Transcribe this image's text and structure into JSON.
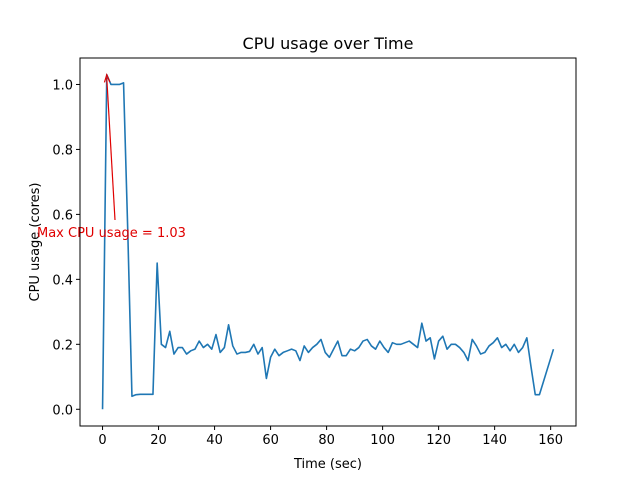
{
  "chart_data": {
    "type": "line",
    "title": "CPU usage over Time",
    "xlabel": "Time (sec)",
    "ylabel": "CPU usage (cores)",
    "annotation": "Max CPU usage = 1.03",
    "annotation_color": "#e00000",
    "x": [
      0,
      1.5,
      3,
      4.5,
      6,
      7.5,
      9,
      10.5,
      12,
      13.5,
      15,
      16.5,
      18,
      19.5,
      21,
      22.5,
      24,
      25.5,
      27,
      28.5,
      30,
      31.5,
      33,
      34.5,
      36,
      37.5,
      39,
      40.5,
      42,
      43.5,
      45,
      46.5,
      48,
      49.5,
      51,
      52.5,
      54,
      55.5,
      57,
      58.5,
      60,
      61.5,
      63,
      64.5,
      66,
      67.5,
      69,
      70.5,
      72,
      73.5,
      75,
      76.5,
      78,
      79.5,
      81,
      82.5,
      84,
      85.5,
      87,
      88.5,
      90,
      91.5,
      93,
      94.5,
      96,
      97.5,
      99,
      100.5,
      102,
      103.5,
      105,
      106.5,
      108,
      109.5,
      111,
      112.5,
      114,
      115.5,
      117,
      118.5,
      120,
      121.5,
      123,
      124.5,
      126,
      127.5,
      129,
      130.5,
      132,
      133.5,
      135,
      136.5,
      138,
      139.5,
      141,
      142.5,
      144,
      145.5,
      147,
      148.5,
      150,
      151.5,
      153,
      154.5,
      156,
      161
    ],
    "series": [
      {
        "name": "CPU usage",
        "color": "#1f77b4",
        "values": [
          0,
          1.03,
          1.0,
          1.0,
          1.0,
          1.005,
          0.55,
          0.04,
          0.045,
          0.046,
          0.046,
          0.046,
          0.046,
          0.45,
          0.2,
          0.19,
          0.24,
          0.17,
          0.19,
          0.19,
          0.17,
          0.18,
          0.185,
          0.21,
          0.19,
          0.2,
          0.185,
          0.23,
          0.175,
          0.19,
          0.26,
          0.195,
          0.17,
          0.175,
          0.175,
          0.178,
          0.2,
          0.17,
          0.19,
          0.095,
          0.16,
          0.185,
          0.165,
          0.175,
          0.18,
          0.185,
          0.18,
          0.15,
          0.195,
          0.175,
          0.19,
          0.2,
          0.215,
          0.175,
          0.16,
          0.185,
          0.21,
          0.165,
          0.165,
          0.185,
          0.18,
          0.19,
          0.21,
          0.215,
          0.195,
          0.185,
          0.21,
          0.19,
          0.175,
          0.205,
          0.2,
          0.2,
          0.205,
          0.21,
          0.2,
          0.19,
          0.265,
          0.21,
          0.22,
          0.155,
          0.21,
          0.225,
          0.185,
          0.2,
          0.2,
          0.19,
          0.175,
          0.15,
          0.215,
          0.195,
          0.17,
          0.175,
          0.195,
          0.205,
          0.22,
          0.19,
          0.2,
          0.18,
          0.2,
          0.175,
          0.19,
          0.22,
          0.13,
          0.045,
          0.045,
          0.185
        ]
      }
    ],
    "xlim": [
      -8.05,
      169.05
    ],
    "ylim": [
      -0.0515,
      1.0815
    ],
    "xticks": [
      0,
      20,
      40,
      60,
      80,
      100,
      120,
      140,
      160
    ],
    "yticks": [
      {
        "value": 0,
        "label": "0.0"
      },
      0.2,
      0.4,
      0.6,
      0.8,
      {
        "value": 1,
        "label": "1.0"
      }
    ]
  }
}
